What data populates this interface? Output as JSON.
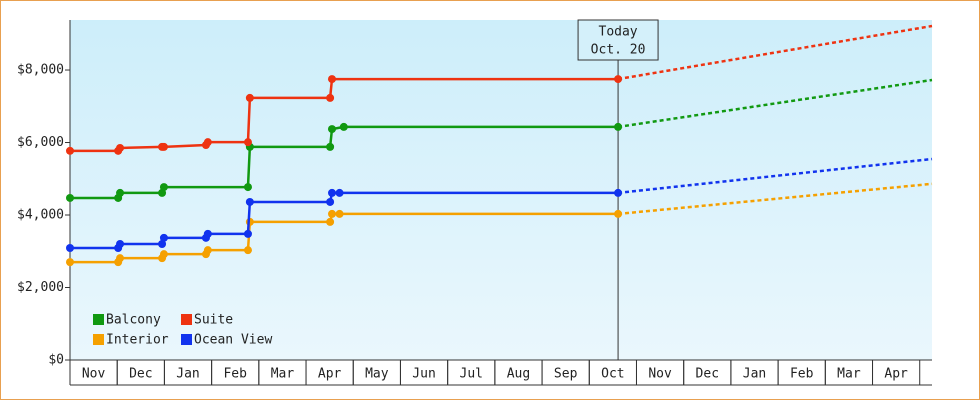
{
  "chart_data": {
    "type": "line",
    "categories": [
      "Nov",
      "Dec",
      "Jan",
      "Feb",
      "Mar",
      "Apr",
      "May",
      "Jun",
      "Jul",
      "Aug",
      "Sep",
      "Oct",
      "Nov",
      "Dec",
      "Jan",
      "Feb",
      "Mar",
      "Apr"
    ],
    "xlim": [
      0,
      18.26
    ],
    "ylim": [
      0,
      9380
    ],
    "yticks": [
      {
        "value": 0,
        "label": "$0"
      },
      {
        "value": 2000,
        "label": "$2,000"
      },
      {
        "value": 4000,
        "label": "$4,000"
      },
      {
        "value": 6000,
        "label": "$6,000"
      },
      {
        "value": 8000,
        "label": "$8,000"
      }
    ],
    "today": {
      "x": 11.61,
      "label": [
        "Today",
        "Oct. 20"
      ]
    },
    "series": [
      {
        "name": "Balcony",
        "color": "#119911",
        "x": [
          0,
          1.02,
          1.06,
          1.95,
          1.99,
          3.77,
          3.81,
          5.51,
          5.55,
          5.8,
          11.61
        ],
        "values": [
          4470,
          4470,
          4610,
          4610,
          4770,
          4770,
          5880,
          5880,
          6370,
          6430,
          6430
        ],
        "forecast_x": [
          11.61,
          18.26
        ],
        "forecast_values": [
          6430,
          7725
        ]
      },
      {
        "name": "Suite",
        "color": "#ee3311",
        "x": [
          0,
          1.02,
          1.06,
          1.95,
          1.99,
          2.88,
          2.92,
          3.77,
          3.81,
          5.51,
          5.55,
          11.61
        ],
        "values": [
          5770,
          5770,
          5850,
          5880,
          5880,
          5930,
          6010,
          6010,
          7230,
          7230,
          7750,
          7750
        ],
        "forecast_x": [
          11.61,
          18.26
        ],
        "forecast_values": [
          7750,
          9215
        ]
      },
      {
        "name": "Interior",
        "color": "#f5a000",
        "x": [
          0,
          1.02,
          1.06,
          1.95,
          1.99,
          2.88,
          2.92,
          3.77,
          3.81,
          5.51,
          5.55,
          5.71,
          11.61
        ],
        "values": [
          2700,
          2700,
          2810,
          2810,
          2920,
          2920,
          3030,
          3030,
          3810,
          3810,
          4030,
          4030,
          4030
        ],
        "forecast_x": [
          11.61,
          18.26
        ],
        "forecast_values": [
          4030,
          4860
        ]
      },
      {
        "name": "Ocean View",
        "color": "#1133ee",
        "x": [
          0,
          1.02,
          1.06,
          1.95,
          1.99,
          2.88,
          2.92,
          3.77,
          3.81,
          5.51,
          5.55,
          5.71,
          11.61
        ],
        "values": [
          3090,
          3090,
          3200,
          3200,
          3370,
          3370,
          3480,
          3480,
          4360,
          4360,
          4610,
          4610,
          4610
        ],
        "forecast_x": [
          11.61,
          18.26
        ],
        "forecast_values": [
          4610,
          5545
        ]
      }
    ]
  }
}
